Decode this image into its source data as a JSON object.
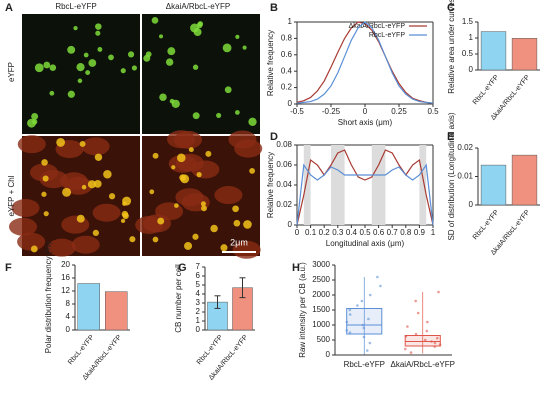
{
  "image_panel": {
    "panel": "A",
    "columns": [
      "RbcL-eYFP",
      "ΔkaiA/RbcL-eYFP"
    ],
    "rows": [
      "eYFP",
      "eYFP + Chl"
    ],
    "scale_bar": "2μm"
  },
  "chart_data": [
    {
      "type": "line",
      "panel": "B",
      "xlabel": "Short axis (μm)",
      "ylabel": "Relative frequency",
      "x": [
        -0.5,
        -0.45,
        -0.4,
        -0.35,
        -0.3,
        -0.25,
        -0.2,
        -0.15,
        -0.1,
        -0.05,
        0,
        0.05,
        0.1,
        0.15,
        0.2,
        0.25,
        0.3,
        0.35,
        0.4,
        0.45,
        0.5
      ],
      "series": [
        {
          "name": "ΔkaiA/RbcL-eYFP",
          "color": "#a83a32",
          "values": [
            0.02,
            0.04,
            0.08,
            0.16,
            0.28,
            0.45,
            0.63,
            0.8,
            0.93,
            1,
            0.98,
            0.9,
            0.76,
            0.58,
            0.4,
            0.25,
            0.14,
            0.07,
            0.04,
            0.02,
            0.01
          ]
        },
        {
          "name": "RbcL-eYFP",
          "color": "#5b8fd6",
          "values": [
            0.01,
            0.02,
            0.03,
            0.06,
            0.12,
            0.22,
            0.38,
            0.58,
            0.78,
            0.93,
            1,
            0.93,
            0.78,
            0.58,
            0.38,
            0.22,
            0.12,
            0.06,
            0.03,
            0.02,
            0.01
          ]
        }
      ],
      "xlim": [
        -0.5,
        0.5
      ],
      "xticks": [
        -0.5,
        -0.25,
        0,
        0.25,
        0.5
      ],
      "ylim": [
        0,
        1
      ],
      "yticks": [
        0,
        0.2,
        0.4,
        0.6,
        0.8,
        1
      ],
      "legend": "upper right"
    },
    {
      "type": "bar",
      "panel": "C",
      "ylabel": "Relative area under curves",
      "categories": [
        "RbcL-eYFP",
        "ΔkaiA/RbcL-eYFP"
      ],
      "values": [
        1.2,
        0.99
      ],
      "colors": [
        "#8fd5f2",
        "#f0907f"
      ],
      "ylim": [
        0,
        1.5
      ],
      "yticks": [
        0,
        0.5,
        1,
        1.5
      ]
    },
    {
      "type": "line",
      "panel": "D",
      "xlabel": "Longitudinal axis (μm)",
      "ylabel": "Relative frequency",
      "x": [
        0,
        0.05,
        0.1,
        0.15,
        0.2,
        0.25,
        0.3,
        0.35,
        0.4,
        0.45,
        0.5,
        0.55,
        0.6,
        0.65,
        0.7,
        0.75,
        0.8,
        0.85,
        0.9,
        0.95,
        1
      ],
      "series": [
        {
          "name": null,
          "color": "#a83a32",
          "values": [
            0,
            0.03,
            0.065,
            0.06,
            0.05,
            0.06,
            0.072,
            0.075,
            0.06,
            0.048,
            0.045,
            0.048,
            0.06,
            0.075,
            0.072,
            0.06,
            0.05,
            0.06,
            0.065,
            0.03,
            0
          ]
        },
        {
          "name": null,
          "color": "#5b8fd6",
          "values": [
            0,
            0.06,
            0.05,
            0.045,
            0.05,
            0.058,
            0.055,
            0.05,
            0.05,
            0.05,
            0.05,
            0.05,
            0.05,
            0.05,
            0.055,
            0.058,
            0.05,
            0.045,
            0.05,
            0.06,
            0
          ]
        }
      ],
      "shaded": [
        [
          0.05,
          0.1
        ],
        [
          0.25,
          0.35
        ],
        [
          0.55,
          0.65
        ],
        [
          0.9,
          0.95
        ]
      ],
      "xlim": [
        0,
        1
      ],
      "xticks": [
        0,
        0.1,
        0.2,
        0.3,
        0.4,
        0.5,
        0.6,
        0.7,
        0.8,
        0.9,
        1
      ],
      "ylim": [
        0,
        0.08
      ],
      "yticks": [
        0,
        0.02,
        0.04,
        0.06,
        0.08
      ]
    },
    {
      "type": "bar",
      "panel": "E",
      "ylabel": "SD of distribution (Longitudinal axis)",
      "categories": [
        "RbcL-eYFP",
        "ΔkaiA/RbcL-eYFP"
      ],
      "values": [
        0.014,
        0.0175
      ],
      "colors": [
        "#8fd5f2",
        "#f0907f"
      ],
      "ylim": [
        0,
        0.02
      ],
      "yticks": [
        0,
        0.01,
        0.02
      ]
    },
    {
      "type": "bar",
      "panel": "F",
      "ylabel": "Polar distribution frequency (%)",
      "categories": [
        "RbcL-eYFP",
        "ΔkaiA/RbcL-eYFP"
      ],
      "values": [
        14.3,
        11.8
      ],
      "colors": [
        "#8fd5f2",
        "#f0907f"
      ],
      "ylim": [
        0,
        20
      ],
      "yticks": [
        0,
        4,
        8,
        12,
        16,
        20
      ]
    },
    {
      "type": "bar",
      "panel": "G",
      "ylabel": "CB number per cell",
      "categories": [
        "RbcL-eYFP",
        "ΔkaiA/RbcL-eYFP"
      ],
      "values": [
        3.1,
        4.7
      ],
      "errors": [
        0.7,
        1.1
      ],
      "colors": [
        "#8fd5f2",
        "#f0907f"
      ],
      "ylim": [
        0,
        7
      ],
      "yticks": [
        0,
        1,
        2,
        3,
        4,
        5,
        6,
        7
      ]
    },
    {
      "type": "box",
      "panel": "H",
      "ylabel": "Raw intensity per CB (a.u.)",
      "categories": [
        "RbcL-eYFP",
        "ΔkaiA/RbcL-eYFP"
      ],
      "boxes": [
        {
          "min": 20,
          "q1": 700,
          "median": 1000,
          "q3": 1550,
          "max": 2600
        },
        {
          "min": 50,
          "q1": 300,
          "median": 450,
          "q3": 650,
          "max": 2100
        }
      ],
      "points": [
        [
          150,
          400,
          600,
          750,
          820,
          900,
          1000,
          1100,
          1200,
          1350,
          1500,
          1650,
          1800,
          2000,
          2300,
          2600
        ],
        [
          80,
          200,
          280,
          350,
          400,
          450,
          500,
          560,
          620,
          700,
          800,
          950,
          1100,
          1400,
          1800,
          2100
        ]
      ],
      "colors": [
        "#5b8fd6",
        "#e0554a"
      ],
      "ylim": [
        0,
        3000
      ],
      "yticks": [
        0,
        500,
        1000,
        1500,
        2000,
        2500,
        3000
      ]
    }
  ]
}
